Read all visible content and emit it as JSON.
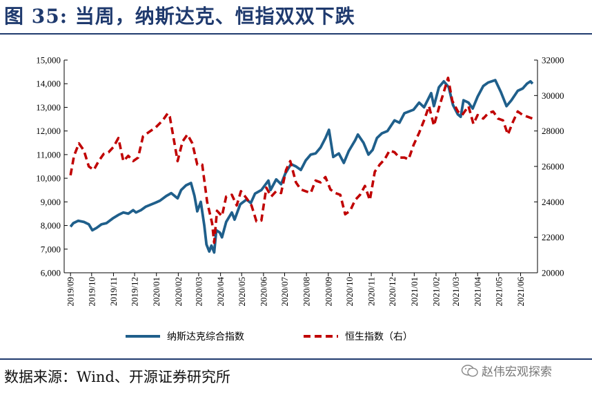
{
  "figure": {
    "title": "图 35:  当周，纳斯达克、恒指双双下跌",
    "source": "数据来源：Wind、开源证券研究所",
    "watermark": "赵伟宏观探索"
  },
  "colors": {
    "nasdaq": "#1f5f8b",
    "hsi": "#c00000",
    "title": "#1f3a6e"
  },
  "chart_data": {
    "type": "line",
    "title": "",
    "xlabel": "",
    "ylabel": "",
    "ylim_left": [
      6000,
      15000
    ],
    "ylim_right": [
      20000,
      32000
    ],
    "left_ticks": [
      "15,000",
      "14,000",
      "13,000",
      "12,000",
      "11,000",
      "10,000",
      "9,000",
      "8,000",
      "7,000",
      "6,000"
    ],
    "right_ticks": [
      "32000",
      "30000",
      "28000",
      "26000",
      "24000",
      "22000",
      "20000"
    ],
    "x_ticks": [
      "2019/09",
      "2019/10",
      "2019/11",
      "2019/12",
      "2020/01",
      "2020/02",
      "2020/03",
      "2020/04",
      "2020/05",
      "2020/06",
      "2020/07",
      "2020/08",
      "2020/09",
      "2020/10",
      "2020/11",
      "2020/12",
      "2021/01",
      "2021/02",
      "2021/03",
      "2021/04",
      "2021/05",
      "2021/06"
    ],
    "grid": false,
    "legend_position": "bottom",
    "series": [
      {
        "name": "纳斯达克综合指数",
        "axis": "left",
        "style": "solid",
        "points": [
          [
            "2019-09-01",
            7950
          ],
          [
            "2019-09-05",
            8100
          ],
          [
            "2019-09-12",
            8200
          ],
          [
            "2019-09-20",
            8150
          ],
          [
            "2019-09-27",
            8050
          ],
          [
            "2019-10-02",
            7800
          ],
          [
            "2019-10-08",
            7900
          ],
          [
            "2019-10-15",
            8050
          ],
          [
            "2019-10-22",
            8100
          ],
          [
            "2019-10-31",
            8300
          ],
          [
            "2019-11-08",
            8450
          ],
          [
            "2019-11-15",
            8550
          ],
          [
            "2019-11-22",
            8500
          ],
          [
            "2019-11-29",
            8650
          ],
          [
            "2019-12-03",
            8550
          ],
          [
            "2019-12-10",
            8650
          ],
          [
            "2019-12-17",
            8800
          ],
          [
            "2019-12-31",
            8970
          ],
          [
            "2020-01-06",
            9050
          ],
          [
            "2020-01-15",
            9250
          ],
          [
            "2020-01-22",
            9370
          ],
          [
            "2020-01-31",
            9150
          ],
          [
            "2020-02-05",
            9500
          ],
          [
            "2020-02-12",
            9700
          ],
          [
            "2020-02-19",
            9800
          ],
          [
            "2020-02-24",
            9250
          ],
          [
            "2020-02-28",
            8600
          ],
          [
            "2020-03-04",
            9000
          ],
          [
            "2020-03-09",
            8000
          ],
          [
            "2020-03-12",
            7200
          ],
          [
            "2020-03-16",
            6900
          ],
          [
            "2020-03-19",
            7150
          ],
          [
            "2020-03-23",
            6860
          ],
          [
            "2020-03-26",
            7800
          ],
          [
            "2020-03-31",
            7700
          ],
          [
            "2020-04-03",
            7500
          ],
          [
            "2020-04-09",
            8150
          ],
          [
            "2020-04-17",
            8550
          ],
          [
            "2020-04-21",
            8250
          ],
          [
            "2020-04-29",
            8900
          ],
          [
            "2020-05-08",
            9100
          ],
          [
            "2020-05-14",
            8950
          ],
          [
            "2020-05-20",
            9350
          ],
          [
            "2020-05-29",
            9500
          ],
          [
            "2020-06-08",
            9900
          ],
          [
            "2020-06-11",
            9500
          ],
          [
            "2020-06-19",
            9950
          ],
          [
            "2020-06-26",
            9750
          ],
          [
            "2020-07-02",
            10200
          ],
          [
            "2020-07-10",
            10600
          ],
          [
            "2020-07-17",
            10500
          ],
          [
            "2020-07-24",
            10350
          ],
          [
            "2020-07-31",
            10750
          ],
          [
            "2020-08-07",
            11000
          ],
          [
            "2020-08-14",
            11050
          ],
          [
            "2020-08-21",
            11300
          ],
          [
            "2020-08-28",
            11700
          ],
          [
            "2020-09-02",
            12050
          ],
          [
            "2020-09-08",
            10900
          ],
          [
            "2020-09-16",
            11050
          ],
          [
            "2020-09-23",
            10650
          ],
          [
            "2020-09-30",
            11150
          ],
          [
            "2020-10-09",
            11600
          ],
          [
            "2020-10-13",
            11850
          ],
          [
            "2020-10-21",
            11500
          ],
          [
            "2020-10-28",
            11000
          ],
          [
            "2020-11-03",
            11200
          ],
          [
            "2020-11-09",
            11700
          ],
          [
            "2020-11-16",
            11900
          ],
          [
            "2020-11-24",
            12000
          ],
          [
            "2020-12-04",
            12450
          ],
          [
            "2020-12-11",
            12350
          ],
          [
            "2020-12-18",
            12750
          ],
          [
            "2020-12-31",
            12900
          ],
          [
            "2021-01-08",
            13200
          ],
          [
            "2021-01-15",
            13000
          ],
          [
            "2021-01-25",
            13600
          ],
          [
            "2021-01-29",
            13050
          ],
          [
            "2021-02-05",
            13850
          ],
          [
            "2021-02-12",
            14100
          ],
          [
            "2021-02-19",
            13850
          ],
          [
            "2021-02-25",
            13100
          ],
          [
            "2021-03-04",
            12700
          ],
          [
            "2021-03-08",
            12600
          ],
          [
            "2021-03-12",
            13300
          ],
          [
            "2021-03-19",
            13200
          ],
          [
            "2021-03-25",
            12950
          ],
          [
            "2021-04-01",
            13450
          ],
          [
            "2021-04-09",
            13900
          ],
          [
            "2021-04-16",
            14050
          ],
          [
            "2021-04-26",
            14150
          ],
          [
            "2021-05-04",
            13650
          ],
          [
            "2021-05-12",
            13050
          ],
          [
            "2021-05-19",
            13300
          ],
          [
            "2021-05-28",
            13700
          ],
          [
            "2021-06-04",
            13800
          ],
          [
            "2021-06-10",
            14000
          ],
          [
            "2021-06-15",
            14100
          ],
          [
            "2021-06-18",
            14000
          ]
        ]
      },
      {
        "name": "恒生指数（右）",
        "axis": "right",
        "style": "dashed",
        "points": [
          [
            "2019-09-01",
            25500
          ],
          [
            "2019-09-06",
            26600
          ],
          [
            "2019-09-13",
            27300
          ],
          [
            "2019-09-20",
            26900
          ],
          [
            "2019-09-27",
            26000
          ],
          [
            "2019-10-04",
            25800
          ],
          [
            "2019-10-11",
            26300
          ],
          [
            "2019-10-18",
            26700
          ],
          [
            "2019-10-25",
            26800
          ],
          [
            "2019-11-01",
            27100
          ],
          [
            "2019-11-08",
            27600
          ],
          [
            "2019-11-15",
            26300
          ],
          [
            "2019-11-22",
            26600
          ],
          [
            "2019-11-29",
            26300
          ],
          [
            "2019-12-06",
            26500
          ],
          [
            "2019-12-13",
            27700
          ],
          [
            "2019-12-20",
            27900
          ],
          [
            "2019-12-31",
            28200
          ],
          [
            "2020-01-10",
            28600
          ],
          [
            "2020-01-17",
            29000
          ],
          [
            "2020-01-20",
            28800
          ],
          [
            "2020-01-24",
            27900
          ],
          [
            "2020-01-31",
            26300
          ],
          [
            "2020-02-07",
            27400
          ],
          [
            "2020-02-14",
            27800
          ],
          [
            "2020-02-21",
            27300
          ],
          [
            "2020-02-28",
            26100
          ],
          [
            "2020-03-06",
            26100
          ],
          [
            "2020-03-13",
            24000
          ],
          [
            "2020-03-20",
            22800
          ],
          [
            "2020-03-23",
            21700
          ],
          [
            "2020-03-27",
            23500
          ],
          [
            "2020-04-03",
            23200
          ],
          [
            "2020-04-09",
            24300
          ],
          [
            "2020-04-17",
            24400
          ],
          [
            "2020-04-24",
            23800
          ],
          [
            "2020-04-30",
            24600
          ],
          [
            "2020-05-08",
            24200
          ],
          [
            "2020-05-15",
            23800
          ],
          [
            "2020-05-22",
            22900
          ],
          [
            "2020-05-29",
            22950
          ],
          [
            "2020-06-05",
            24800
          ],
          [
            "2020-06-12",
            24300
          ],
          [
            "2020-06-19",
            24600
          ],
          [
            "2020-06-26",
            24500
          ],
          [
            "2020-07-03",
            25800
          ],
          [
            "2020-07-09",
            26300
          ],
          [
            "2020-07-17",
            25100
          ],
          [
            "2020-07-24",
            24700
          ],
          [
            "2020-07-31",
            24600
          ],
          [
            "2020-08-07",
            24500
          ],
          [
            "2020-08-14",
            25200
          ],
          [
            "2020-08-21",
            25100
          ],
          [
            "2020-08-28",
            25400
          ],
          [
            "2020-09-04",
            24700
          ],
          [
            "2020-09-11",
            24500
          ],
          [
            "2020-09-18",
            24400
          ],
          [
            "2020-09-25",
            23300
          ],
          [
            "2020-10-02",
            23500
          ],
          [
            "2020-10-09",
            24100
          ],
          [
            "2020-10-16",
            24400
          ],
          [
            "2020-10-23",
            24900
          ],
          [
            "2020-10-30",
            24100
          ],
          [
            "2020-11-06",
            25700
          ],
          [
            "2020-11-13",
            26100
          ],
          [
            "2020-11-20",
            26400
          ],
          [
            "2020-11-27",
            26900
          ],
          [
            "2020-12-04",
            26800
          ],
          [
            "2020-12-11",
            26500
          ],
          [
            "2020-12-18",
            26500
          ],
          [
            "2020-12-24",
            26400
          ],
          [
            "2020-12-31",
            27200
          ],
          [
            "2021-01-08",
            27900
          ],
          [
            "2021-01-15",
            28600
          ],
          [
            "2021-01-22",
            29400
          ],
          [
            "2021-01-29",
            28300
          ],
          [
            "2021-02-05",
            29300
          ],
          [
            "2021-02-12",
            30200
          ],
          [
            "2021-02-18",
            31000
          ],
          [
            "2021-02-24",
            29700
          ],
          [
            "2021-03-04",
            29100
          ],
          [
            "2021-03-10",
            28900
          ],
          [
            "2021-03-19",
            29400
          ],
          [
            "2021-03-26",
            28400
          ],
          [
            "2021-04-01",
            28900
          ],
          [
            "2021-04-09",
            28700
          ],
          [
            "2021-04-16",
            29000
          ],
          [
            "2021-04-23",
            29100
          ],
          [
            "2021-04-30",
            28700
          ],
          [
            "2021-05-07",
            28600
          ],
          [
            "2021-05-14",
            27800
          ],
          [
            "2021-05-21",
            28500
          ],
          [
            "2021-05-28",
            29100
          ],
          [
            "2021-06-04",
            28900
          ],
          [
            "2021-06-11",
            28800
          ],
          [
            "2021-06-18",
            28700
          ]
        ]
      }
    ]
  }
}
